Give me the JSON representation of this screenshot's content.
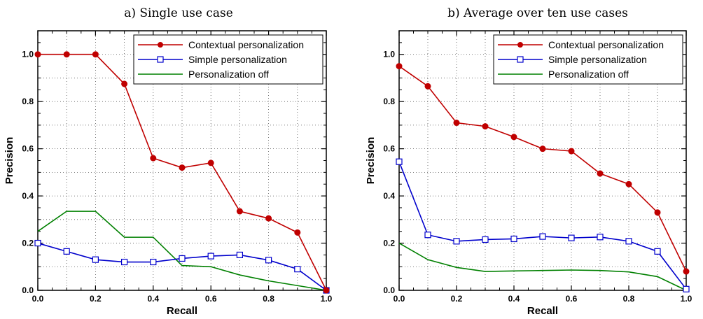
{
  "chart_data": [
    {
      "type": "line",
      "title": "a)  Single use case",
      "xlabel": "Recall",
      "ylabel": "Precision",
      "xlim": [
        0,
        1
      ],
      "ylim": [
        0,
        1.1
      ],
      "xticks": [
        "0.0",
        "0.2",
        "0.4",
        "0.6",
        "0.8",
        "1.0"
      ],
      "yticks": [
        "0.0",
        "0.2",
        "0.4",
        "0.6",
        "0.8",
        "1.0"
      ],
      "legend_position": "top-right",
      "series": [
        {
          "name": "Contextual personalization",
          "color": "#c00000",
          "marker": "filled-circle",
          "x": [
            0,
            0.1,
            0.2,
            0.3,
            0.4,
            0.5,
            0.6,
            0.7,
            0.8,
            0.9,
            1.0
          ],
          "y": [
            1.0,
            1.0,
            1.0,
            0.875,
            0.56,
            0.52,
            0.54,
            0.335,
            0.305,
            0.245,
            0.0
          ]
        },
        {
          "name": "Simple personalization",
          "color": "#0000cc",
          "marker": "open-square",
          "x": [
            0,
            0.1,
            0.2,
            0.3,
            0.4,
            0.5,
            0.6,
            0.7,
            0.8,
            0.9,
            1.0
          ],
          "y": [
            0.2,
            0.165,
            0.13,
            0.12,
            0.12,
            0.135,
            0.145,
            0.15,
            0.128,
            0.09,
            0.0
          ]
        },
        {
          "name": "Personalization off",
          "color": "#008000",
          "marker": "none",
          "x": [
            0,
            0.1,
            0.2,
            0.3,
            0.4,
            0.5,
            0.6,
            0.7,
            0.8,
            0.9,
            1.0
          ],
          "y": [
            0.25,
            0.335,
            0.335,
            0.225,
            0.225,
            0.105,
            0.1,
            0.065,
            0.04,
            0.02,
            0.0
          ]
        }
      ]
    },
    {
      "type": "line",
      "title": "b) Average over ten use cases",
      "xlabel": "Recall",
      "ylabel": "Precision",
      "xlim": [
        0,
        1
      ],
      "ylim": [
        0,
        1.1
      ],
      "xticks": [
        "0.0",
        "0.2",
        "0.4",
        "0.6",
        "0.8",
        "1.0"
      ],
      "yticks": [
        "0.0",
        "0.2",
        "0.4",
        "0.6",
        "0.8",
        "1.0"
      ],
      "legend_position": "top-right",
      "series": [
        {
          "name": "Contextual personalization",
          "color": "#c00000",
          "marker": "filled-circle",
          "x": [
            0,
            0.1,
            0.2,
            0.3,
            0.4,
            0.5,
            0.6,
            0.7,
            0.8,
            0.9,
            1.0
          ],
          "y": [
            0.95,
            0.865,
            0.71,
            0.695,
            0.65,
            0.6,
            0.59,
            0.495,
            0.45,
            0.33,
            0.08
          ]
        },
        {
          "name": "Simple personalization",
          "color": "#0000cc",
          "marker": "open-square",
          "x": [
            0,
            0.1,
            0.2,
            0.3,
            0.4,
            0.5,
            0.6,
            0.7,
            0.8,
            0.9,
            1.0
          ],
          "y": [
            0.545,
            0.235,
            0.208,
            0.215,
            0.218,
            0.228,
            0.222,
            0.226,
            0.208,
            0.165,
            0.005
          ]
        },
        {
          "name": "Personalization off",
          "color": "#008000",
          "marker": "none",
          "x": [
            0,
            0.1,
            0.2,
            0.3,
            0.4,
            0.5,
            0.6,
            0.7,
            0.8,
            0.9,
            1.0
          ],
          "y": [
            0.2,
            0.13,
            0.097,
            0.08,
            0.082,
            0.084,
            0.086,
            0.084,
            0.078,
            0.058,
            0.0
          ]
        }
      ]
    }
  ]
}
